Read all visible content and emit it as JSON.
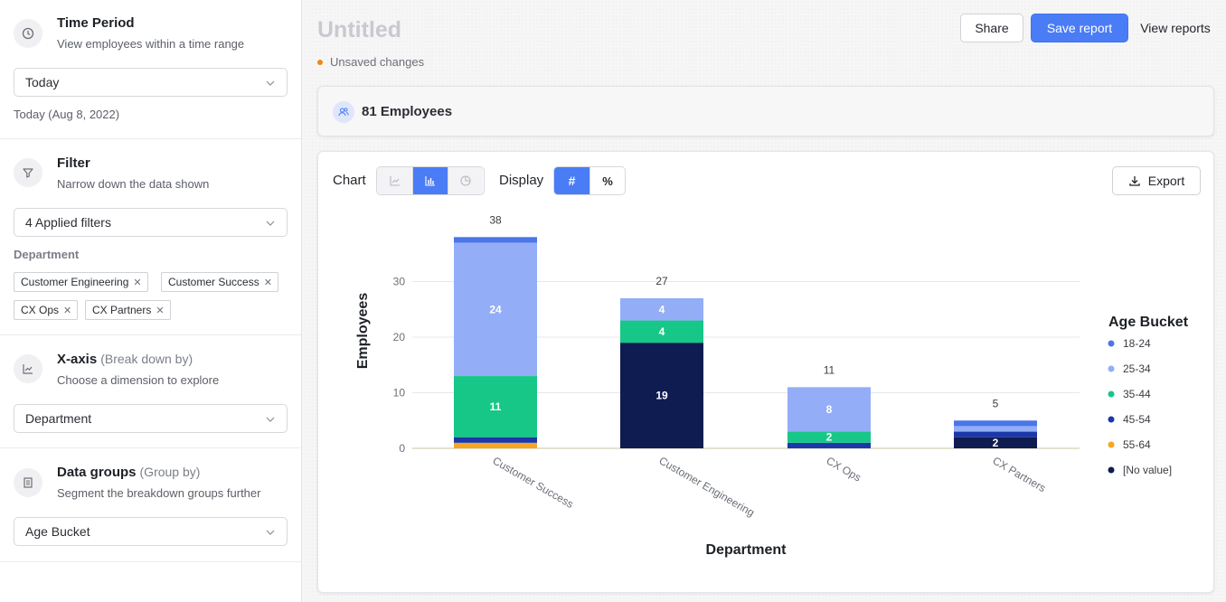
{
  "sidebar": {
    "time_period": {
      "title": "Time Period",
      "description": "View employees within a time range",
      "value": "Today",
      "hint": "Today (Aug 8, 2022)"
    },
    "filter": {
      "title": "Filter",
      "description": "Narrow down the data shown",
      "value": "4 Applied filters",
      "group_label": "Department",
      "chips": [
        "Customer Engineering",
        "Customer Success",
        "CX Ops",
        "CX Partners"
      ]
    },
    "x_axis": {
      "title": "X-axis",
      "subtitle": "(Break down by)",
      "description": "Choose a dimension to explore",
      "value": "Department"
    },
    "data_groups": {
      "title": "Data groups",
      "subtitle": "(Group by)",
      "description": "Segment the breakdown groups further",
      "value": "Age Bucket"
    }
  },
  "header": {
    "title": "Untitled",
    "status": "Unsaved changes",
    "share_label": "Share",
    "save_label": "Save report",
    "view_label": "View reports"
  },
  "summary": {
    "count_label": "81 Employees"
  },
  "toolbar": {
    "chart_label": "Chart",
    "display_label": "Display",
    "export_label": "Export",
    "chart_types": [
      "line",
      "bar",
      "pie"
    ],
    "chart_type_selected": "bar",
    "display_modes": [
      "#",
      "%"
    ],
    "display_selected": "#"
  },
  "colors": {
    "accent": "#4a7cf6",
    "18-24": "#4b76e8",
    "25-34": "#93adf7",
    "35-44": "#17c787",
    "45-54": "#1b37a8",
    "55-64": "#f5a623",
    "[No value]": "#0f1c52"
  },
  "chart_data": {
    "type": "bar",
    "stacked": true,
    "xlabel": "Department",
    "ylabel": "Employees",
    "ylim": [
      0,
      38
    ],
    "yticks": [
      0,
      10,
      20,
      30
    ],
    "grid": true,
    "legend_title": "Age Bucket",
    "legend_position": "right",
    "categories": [
      "Customer Success",
      "Customer Engineering",
      "CX Ops",
      "CX Partners"
    ],
    "totals": [
      38,
      27,
      11,
      5
    ],
    "series": [
      {
        "name": "[No value]",
        "values": [
          0,
          19,
          0,
          2
        ]
      },
      {
        "name": "55-64",
        "values": [
          1,
          0,
          0,
          0
        ]
      },
      {
        "name": "45-54",
        "values": [
          1,
          0,
          1,
          1
        ]
      },
      {
        "name": "35-44",
        "values": [
          11,
          4,
          2,
          0
        ]
      },
      {
        "name": "25-34",
        "values": [
          24,
          4,
          8,
          1
        ]
      },
      {
        "name": "18-24",
        "values": [
          1,
          0,
          0,
          1
        ]
      }
    ],
    "legend_order": [
      "18-24",
      "25-34",
      "35-44",
      "45-54",
      "55-64",
      "[No value]"
    ]
  }
}
